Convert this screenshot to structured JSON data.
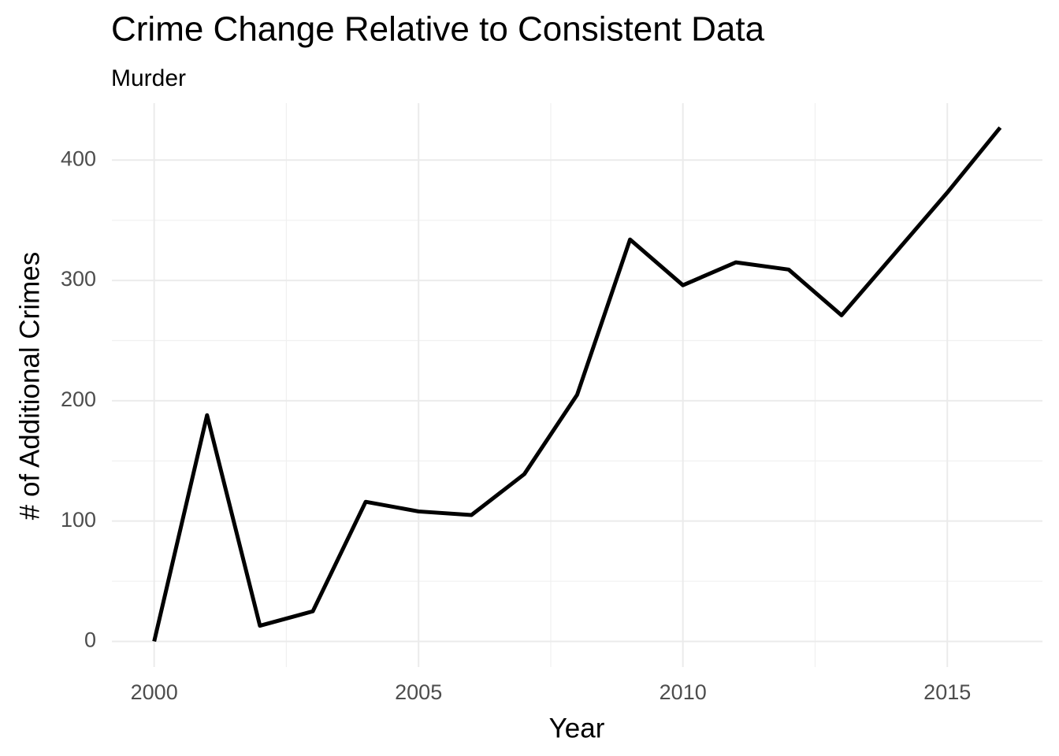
{
  "chart_data": {
    "type": "line",
    "title": "Crime Change Relative to Consistent Data",
    "subtitle": "Murder",
    "x_label": "Year",
    "y_label": "# of Additional Crimes",
    "x": [
      2000,
      2001,
      2002,
      2003,
      2004,
      2005,
      2006,
      2007,
      2008,
      2009,
      2010,
      2011,
      2012,
      2013,
      2014,
      2015,
      2016
    ],
    "series": [
      {
        "name": "Murder",
        "color": "#000000",
        "values": [
          0,
          188,
          13,
          25,
          116,
          108,
          105,
          139,
          205,
          334,
          296,
          315,
          309,
          271,
          322,
          373,
          427
        ]
      }
    ],
    "xlim": [
      1999.2,
      2016.8
    ],
    "xticks": [
      2000,
      2005,
      2010,
      2015
    ],
    "ylim": [
      -21.3,
      447.3
    ],
    "yticks": [
      0,
      100,
      200,
      300,
      400
    ],
    "grid": true
  }
}
